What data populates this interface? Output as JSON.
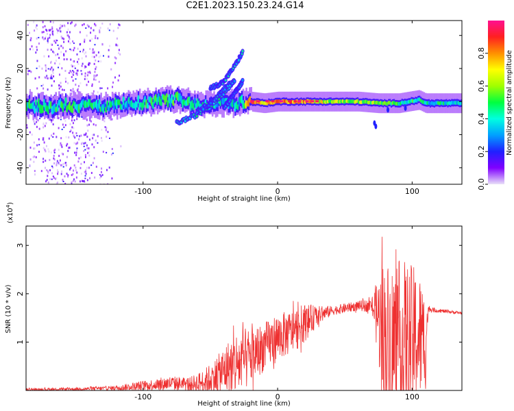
{
  "figure": {
    "title": "C2E1.2023.150.23.24.G14"
  },
  "chart_data": [
    {
      "type": "heatmap",
      "title": "C2E1.2023.150.23.24.G14",
      "xlabel": "Height of straight line (km)",
      "ylabel": "Frequency (Hz)",
      "xlim": [
        -187,
        137
      ],
      "ylim": [
        -50,
        49
      ],
      "xticks": [
        "-100",
        "0",
        "100"
      ],
      "xtick_values": [
        -100,
        0,
        100
      ],
      "yticks": [
        "-40",
        "-20",
        "0",
        "20",
        "40"
      ],
      "ytick_values": [
        -40,
        -20,
        0,
        20,
        40
      ],
      "colorbar": {
        "label": "Normalized spectral amplitude",
        "range": [
          0,
          1
        ],
        "ticks": [
          "0.0",
          "0.2",
          "0.4",
          "0.6",
          "0.8"
        ],
        "tick_values": [
          0.0,
          0.2,
          0.4,
          0.6,
          0.8
        ],
        "colormap": [
          "#e8e0f8",
          "#8000ff",
          "#2020ff",
          "#00a0ff",
          "#00ffe0",
          "#00ff40",
          "#a0ff00",
          "#ffff00",
          "#ff9000",
          "#ff2020",
          "#ff1090"
        ]
      },
      "main_trace": [
        {
          "x": -187,
          "y": -2.5,
          "a": 0.45
        },
        {
          "x": -170,
          "y": -3,
          "a": 0.45
        },
        {
          "x": -150,
          "y": -2,
          "a": 0.45
        },
        {
          "x": -130,
          "y": -3,
          "a": 0.4
        },
        {
          "x": -110,
          "y": -1.5,
          "a": 0.4
        },
        {
          "x": -90,
          "y": 0,
          "a": 0.45
        },
        {
          "x": -75,
          "y": 2,
          "a": 0.45
        },
        {
          "x": -60,
          "y": -2,
          "a": 0.4
        },
        {
          "x": -45,
          "y": -1,
          "a": 0.35
        },
        {
          "x": -30,
          "y": -1,
          "a": 0.35
        },
        {
          "x": -20,
          "y": 0,
          "a": 0.85
        },
        {
          "x": -10,
          "y": -1,
          "a": 0.75
        },
        {
          "x": 0,
          "y": 0,
          "a": 0.8
        },
        {
          "x": 20,
          "y": 0,
          "a": 0.75
        },
        {
          "x": 40,
          "y": 0,
          "a": 0.6
        },
        {
          "x": 60,
          "y": 0,
          "a": 0.6
        },
        {
          "x": 75,
          "y": -1,
          "a": 0.55
        },
        {
          "x": 90,
          "y": -1,
          "a": 0.45
        },
        {
          "x": 105,
          "y": 1,
          "a": 0.45
        },
        {
          "x": 110,
          "y": -1,
          "a": 0.4
        },
        {
          "x": 137,
          "y": -1,
          "a": 0.4
        }
      ],
      "rising_traces": [
        {
          "x": [
            -75,
            -60,
            -50,
            -40,
            -33
          ],
          "y": [
            -13,
            -8,
            -2,
            5,
            12
          ],
          "a": 0.4
        },
        {
          "x": [
            -60,
            -52,
            -45,
            -38,
            -32
          ],
          "y": [
            -6,
            -2,
            3,
            9,
            13
          ],
          "a": 0.35
        },
        {
          "x": [
            -50,
            -40,
            -35,
            -30,
            -26
          ],
          "y": [
            8,
            12,
            18,
            24,
            30
          ],
          "a": 0.35
        },
        {
          "x": [
            -40,
            -32,
            -26
          ],
          "y": [
            -4,
            5,
            12
          ],
          "a": 0.35
        }
      ]
    },
    {
      "type": "line",
      "xlabel": "Height of straight line (km)",
      "ylabel": "SNR (10 * v/v)",
      "scale_label": "(x10",
      "scale_exponent": "4",
      "scale_suffix": ")",
      "xlim": [
        -187,
        137
      ],
      "ylim": [
        0,
        34000
      ],
      "xticks": [
        "-100",
        "0",
        "100"
      ],
      "xtick_values": [
        -100,
        0,
        100
      ],
      "yticks": [
        "1",
        "2",
        "3"
      ],
      "ytick_values": [
        10000,
        20000,
        30000
      ],
      "color": "#ee3030",
      "envelope": {
        "x": [
          -187,
          -150,
          -120,
          -100,
          -80,
          -65,
          -55,
          -45,
          -38,
          -30,
          -20,
          -10,
          0,
          10,
          20,
          30,
          40,
          50,
          60,
          70,
          75,
          78,
          85,
          95,
          105,
          110,
          112,
          120,
          137
        ],
        "center": [
          200,
          300,
          500,
          1000,
          1500,
          1300,
          1800,
          3000,
          4500,
          5500,
          7000,
          9000,
          11000,
          12000,
          14000,
          15500,
          16500,
          17000,
          17500,
          17500,
          15000,
          11000,
          10000,
          10000,
          11000,
          10000,
          16800,
          16500,
          16000
        ],
        "spread": [
          250,
          300,
          500,
          1000,
          1500,
          1500,
          2500,
          4000,
          5500,
          7000,
          6000,
          5000,
          5000,
          4500,
          4000,
          2000,
          1000,
          1000,
          1000,
          1500,
          9000,
          16000,
          17000,
          17000,
          14000,
          10000,
          600,
          400,
          300
        ]
      }
    }
  ]
}
